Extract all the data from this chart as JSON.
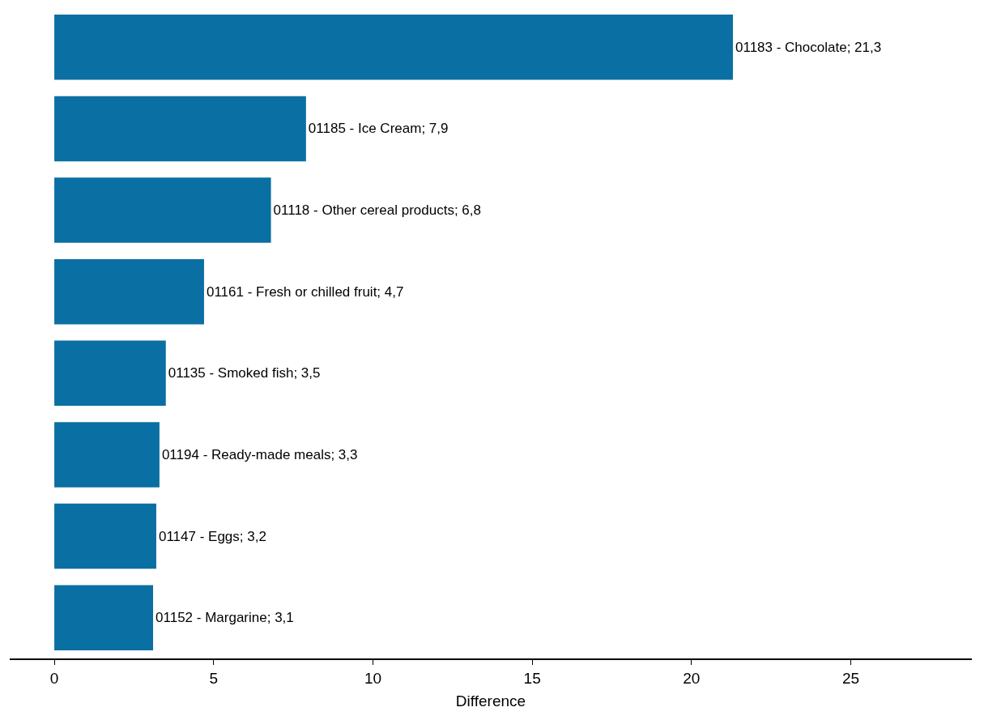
{
  "chart_data": {
    "type": "bar",
    "orientation": "horizontal",
    "xlabel": "Difference",
    "categories": [
      null,
      null,
      null,
      null,
      null,
      null,
      null,
      null
    ],
    "values": [
      21.3,
      7.9,
      6.8,
      4.7,
      3.5,
      3.3,
      3.2,
      3.1
    ],
    "value_labels": [
      "01183 - Chocolate; 21,3",
      "01185 - Ice Cream; 7,9",
      "01118 - Other cereal products; 6,8",
      "01161 - Fresh or chilled fruit; 4,7",
      "01135 - Smoked fish; 3,5",
      "01194 - Ready-made meals; 3,3",
      "01147 - Eggs; 3,2",
      "01152 - Margarine; 3,1"
    ],
    "color": "#0a6fa2",
    "xlim": [
      -1.4,
      28.8
    ],
    "xticks": [
      0,
      5,
      10,
      15,
      20,
      25
    ],
    "legend": false,
    "tick_labels": "x"
  }
}
